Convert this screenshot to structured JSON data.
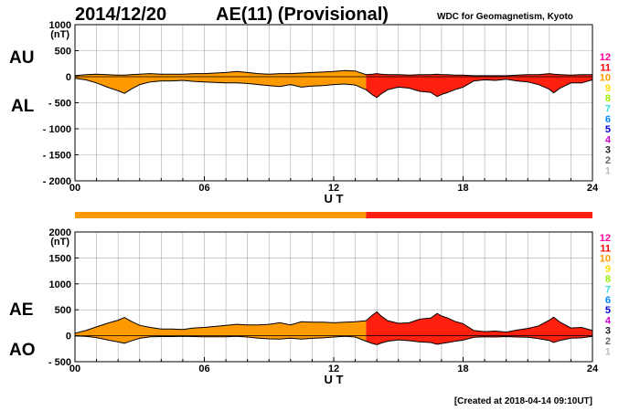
{
  "header": {
    "date": "2014/12/20",
    "title": "AE(11) (Provisional)",
    "source": "WDC for Geomagnetism, Kyoto"
  },
  "footer": {
    "created": "[Created at 2018-04-14 09:10UT]"
  },
  "level_scale": {
    "labels": [
      "12",
      "11",
      "10",
      "9",
      "8",
      "7",
      "6",
      "5",
      "4",
      "3",
      "2",
      "1"
    ],
    "colors": [
      "#ff0099",
      "#ff0000",
      "#ff9900",
      "#ffdd00",
      "#99ee00",
      "#33dddd",
      "#0088ff",
      "#0000dd",
      "#cc00cc",
      "#222222",
      "#666666",
      "#bbbbbb"
    ]
  },
  "colors": {
    "level_10": "#ff9900",
    "level_11": "#ff2010",
    "outline": "#000000",
    "grid": "#aaaaaa"
  },
  "chart_data": [
    {
      "type": "area",
      "name": "AU/AL",
      "upper_label": "AU",
      "lower_label": "AL",
      "ylabel_unit": "(nT)",
      "xlabel": "U T",
      "ylim": [
        -2000,
        1000
      ],
      "yticks": [
        1000,
        500,
        0,
        -500,
        -1000,
        -1500,
        -2000
      ],
      "ytick_labels": [
        "1000",
        "500",
        "0",
        "- 500",
        "- 1000",
        "- 1500",
        "- 2000"
      ],
      "xlim": [
        0,
        24
      ],
      "xticks": [
        0,
        6,
        12,
        18,
        24
      ],
      "xtick_labels": [
        "00",
        "06",
        "12",
        "18",
        "24"
      ],
      "level_segments": [
        {
          "from": 0,
          "to": 13.5,
          "level": 10
        },
        {
          "from": 13.5,
          "to": 24,
          "level": 11
        }
      ],
      "x": [
        0,
        0.5,
        1,
        1.5,
        2,
        2.3,
        2.6,
        3,
        3.5,
        4,
        4.5,
        5,
        5.5,
        6,
        6.5,
        7,
        7.5,
        8,
        8.5,
        9,
        9.5,
        10,
        10.5,
        11,
        11.5,
        12,
        12.5,
        13,
        13.5,
        13.8,
        14,
        14.2,
        14.5,
        15,
        15.5,
        16,
        16.5,
        16.8,
        17,
        17.3,
        17.6,
        18,
        18.5,
        19,
        19.5,
        20,
        20.5,
        21,
        21.5,
        22,
        22.2,
        22.5,
        23,
        23.5,
        24
      ],
      "series": [
        {
          "name": "AU",
          "values": [
            20,
            40,
            50,
            40,
            30,
            30,
            40,
            50,
            60,
            50,
            50,
            50,
            60,
            60,
            70,
            80,
            100,
            80,
            60,
            50,
            60,
            60,
            70,
            80,
            90,
            100,
            120,
            110,
            40,
            50,
            60,
            50,
            40,
            40,
            30,
            40,
            40,
            50,
            40,
            40,
            30,
            30,
            20,
            20,
            20,
            20,
            30,
            40,
            40,
            60,
            50,
            40,
            30,
            40,
            40
          ]
        },
        {
          "name": "AL",
          "values": [
            -30,
            -60,
            -120,
            -200,
            -270,
            -320,
            -240,
            -150,
            -100,
            -80,
            -80,
            -70,
            -90,
            -100,
            -110,
            -120,
            -120,
            -130,
            -150,
            -170,
            -190,
            -150,
            -200,
            -180,
            -170,
            -150,
            -140,
            -160,
            -250,
            -350,
            -400,
            -330,
            -250,
            -200,
            -220,
            -280,
            -300,
            -380,
            -340,
            -300,
            -250,
            -200,
            -80,
            -60,
            -70,
            -50,
            -80,
            -100,
            -150,
            -240,
            -310,
            -220,
            -120,
            -120,
            -60
          ]
        }
      ]
    },
    {
      "type": "area",
      "name": "AE/AO",
      "upper_label": "AE",
      "lower_label": "AO",
      "ylabel_unit": "(nT)",
      "xlabel": "U T",
      "ylim": [
        -500,
        2000
      ],
      "yticks": [
        2000,
        1500,
        1000,
        500,
        0,
        -500
      ],
      "ytick_labels": [
        "2000",
        "1500",
        "1000",
        "500",
        "0",
        "- 500"
      ],
      "xlim": [
        0,
        24
      ],
      "xticks": [
        0,
        6,
        12,
        18,
        24
      ],
      "xtick_labels": [
        "00",
        "06",
        "12",
        "18",
        "24"
      ],
      "level_segments": [
        {
          "from": 0,
          "to": 13.5,
          "level": 10
        },
        {
          "from": 13.5,
          "to": 24,
          "level": 11
        }
      ],
      "x": [
        0,
        0.5,
        1,
        1.5,
        2,
        2.3,
        2.6,
        3,
        3.5,
        4,
        4.5,
        5,
        5.5,
        6,
        6.5,
        7,
        7.5,
        8,
        8.5,
        9,
        9.5,
        10,
        10.5,
        11,
        11.5,
        12,
        12.5,
        13,
        13.5,
        13.8,
        14,
        14.2,
        14.5,
        15,
        15.5,
        16,
        16.5,
        16.8,
        17,
        17.3,
        17.6,
        18,
        18.5,
        19,
        19.5,
        20,
        20.5,
        21,
        21.5,
        22,
        22.2,
        22.5,
        23,
        23.5,
        24
      ],
      "series": [
        {
          "name": "AE",
          "values": [
            50,
            100,
            170,
            240,
            300,
            350,
            280,
            200,
            160,
            130,
            130,
            120,
            150,
            160,
            180,
            200,
            220,
            210,
            210,
            220,
            250,
            210,
            270,
            260,
            260,
            250,
            260,
            270,
            290,
            400,
            460,
            380,
            290,
            240,
            250,
            320,
            340,
            430,
            380,
            340,
            280,
            230,
            100,
            80,
            90,
            70,
            110,
            140,
            190,
            300,
            360,
            260,
            150,
            160,
            100
          ]
        },
        {
          "name": "AO",
          "values": [
            -5,
            -10,
            -35,
            -80,
            -120,
            -145,
            -100,
            -50,
            -20,
            -15,
            -15,
            -10,
            -15,
            -20,
            -20,
            -20,
            -10,
            -25,
            -45,
            -60,
            -65,
            -45,
            -65,
            -50,
            -40,
            -25,
            -10,
            -25,
            -105,
            -150,
            -170,
            -140,
            -105,
            -80,
            -95,
            -120,
            -130,
            -165,
            -150,
            -130,
            -110,
            -85,
            -30,
            -20,
            -25,
            -15,
            -25,
            -30,
            -55,
            -90,
            -130,
            -90,
            -45,
            -40,
            -10
          ]
        }
      ]
    }
  ]
}
